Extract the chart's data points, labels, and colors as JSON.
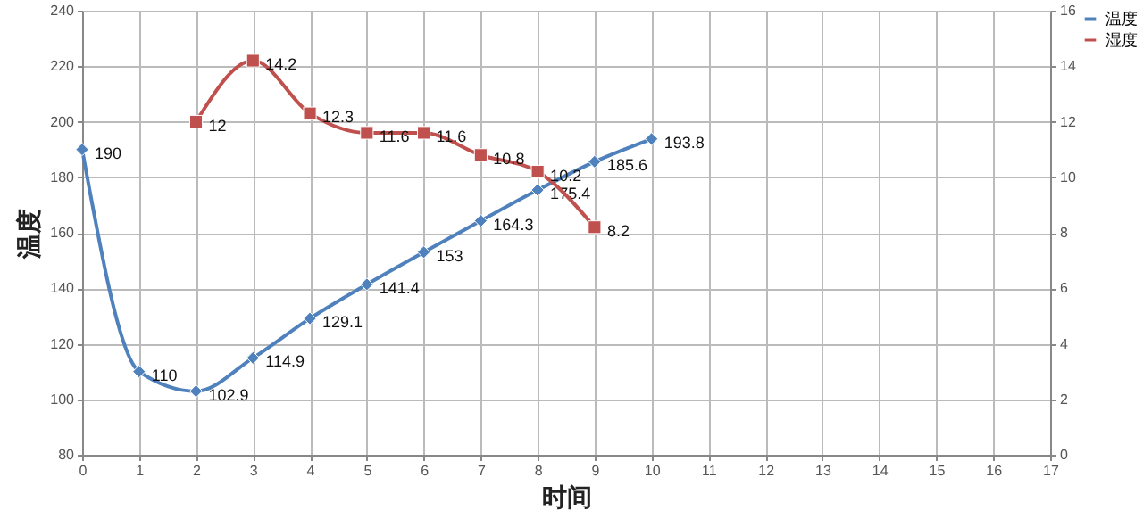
{
  "chart_data": {
    "type": "line",
    "xlabel": "时间",
    "ylabel": "温度",
    "x": [
      0,
      1,
      2,
      3,
      4,
      5,
      6,
      7,
      8,
      9,
      10
    ],
    "series": [
      {
        "name": "温度",
        "color": "#4f81bd",
        "marker": "diamond",
        "values": [
          190,
          110,
          102.9,
          114.9,
          129.1,
          141.4,
          153,
          164.3,
          175.4,
          185.6,
          193.8
        ]
      },
      {
        "name": "湿度",
        "color": "#c0504d",
        "marker": "square",
        "axis": "y2",
        "values": [
          null,
          null,
          12,
          14.2,
          12.3,
          11.6,
          11.6,
          10.8,
          10.2,
          8.2,
          null
        ]
      }
    ],
    "xlim": [
      0,
      17
    ],
    "xticks": [
      0,
      1,
      2,
      3,
      4,
      5,
      6,
      7,
      8,
      9,
      10,
      11,
      12,
      13,
      14,
      15,
      16,
      17
    ],
    "ylim": [
      80,
      240
    ],
    "yticks": [
      80,
      100,
      120,
      140,
      160,
      180,
      200,
      220,
      240
    ],
    "y2lim": [
      0,
      16
    ],
    "y2ticks": [
      0,
      2,
      4,
      6,
      8,
      10,
      12,
      14,
      16
    ],
    "grid": true,
    "legend": "right",
    "data_labels": true,
    "line_style": "solid"
  }
}
